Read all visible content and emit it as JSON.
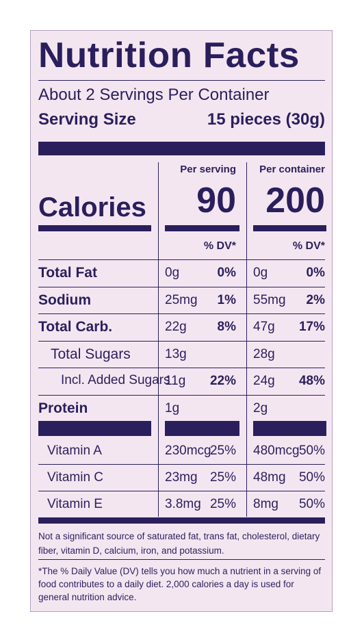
{
  "title": "Nutrition Facts",
  "servings_per_container": "About 2 Servings Per Container",
  "serving_size_label": "Serving Size",
  "serving_size_value": "15 pieces (30g)",
  "per_serving_label": "Per serving",
  "per_container_label": "Per container",
  "calories_label": "Calories",
  "calories_per_serving": "90",
  "calories_per_container": "200",
  "dv_header": "% DV*",
  "nutrients": [
    {
      "label": "Total Fat",
      "serving_amount": "0g",
      "serving_dv": "0%",
      "container_amount": "0g",
      "container_dv": "0%"
    },
    {
      "label": "Sodium",
      "serving_amount": "25mg",
      "serving_dv": "1%",
      "container_amount": "55mg",
      "container_dv": "2%"
    },
    {
      "label": "Total Carb.",
      "serving_amount": "22g",
      "serving_dv": "8%",
      "container_amount": "47g",
      "container_dv": "17%"
    },
    {
      "label": "Total Sugars",
      "serving_amount": "13g",
      "serving_dv": "",
      "container_amount": "28g",
      "container_dv": ""
    },
    {
      "label": "Incl. Added Sugars",
      "serving_amount": "11g",
      "serving_dv": "22%",
      "container_amount": "24g",
      "container_dv": "48%"
    },
    {
      "label": "Protein",
      "serving_amount": "1g",
      "serving_dv": "",
      "container_amount": "2g",
      "container_dv": ""
    }
  ],
  "vitamins": [
    {
      "label": "Vitamin A",
      "serving_amount": "230mcg",
      "serving_dv": "25%",
      "container_amount": "480mcg",
      "container_dv": "50%"
    },
    {
      "label": "Vitamin C",
      "serving_amount": "23mg",
      "serving_dv": "25%",
      "container_amount": "48mg",
      "container_dv": "50%"
    },
    {
      "label": "Vitamin E",
      "serving_amount": "3.8mg",
      "serving_dv": "25%",
      "container_amount": "8mg",
      "container_dv": "50%"
    }
  ],
  "footnote_not_significant": "Not a significant source of saturated fat, trans fat, cholesterol, dietary fiber, vitamin D, calcium, iron, and potassium.",
  "footnote_dv": "*The % Daily Value (DV) tells you how much a nutrient in a serving of food contributes to a daily diet. 2,000 calories a day is used for general nutrition advice.",
  "colors": {
    "ink": "#2a1f5c",
    "background": "#f4e6f1"
  }
}
